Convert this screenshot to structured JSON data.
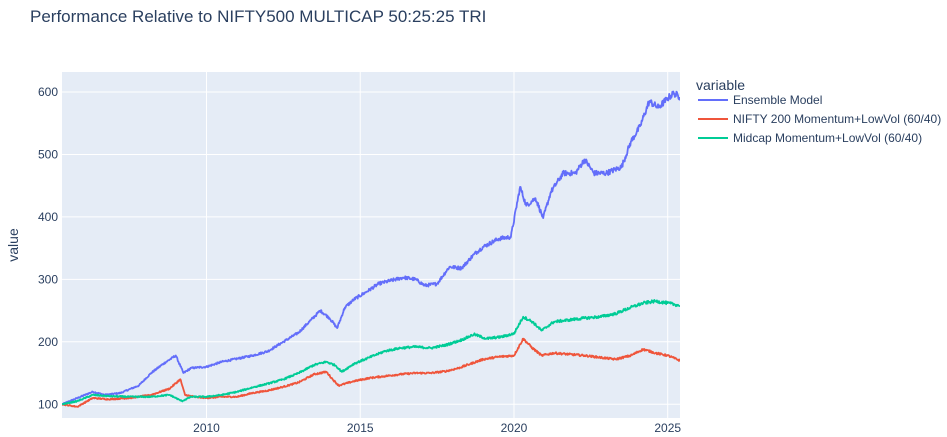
{
  "chart_data": {
    "type": "line",
    "title": "Performance Relative to NIFTY500 MULTICAP 50:25:25 TRI",
    "xlabel": "",
    "ylabel": "value",
    "xlim": [
      2005.3,
      2025.4
    ],
    "ylim": [
      78,
      632
    ],
    "x_ticks": [
      2010,
      2015,
      2020,
      2025
    ],
    "y_ticks": [
      100,
      200,
      300,
      400,
      500,
      600
    ],
    "grid": true,
    "legend": {
      "title": "variable",
      "placement": "right"
    },
    "series": [
      {
        "name": "Ensemble Model",
        "color": "#636efa",
        "points": [
          [
            2005.3,
            100
          ],
          [
            2005.8,
            110
          ],
          [
            2006.3,
            120
          ],
          [
            2006.7,
            115
          ],
          [
            2007.2,
            118
          ],
          [
            2007.8,
            130
          ],
          [
            2008.2,
            150
          ],
          [
            2008.6,
            165
          ],
          [
            2009.0,
            178
          ],
          [
            2009.25,
            150
          ],
          [
            2009.5,
            158
          ],
          [
            2010.0,
            160
          ],
          [
            2010.5,
            168
          ],
          [
            2011.0,
            173
          ],
          [
            2011.5,
            178
          ],
          [
            2012.0,
            185
          ],
          [
            2012.5,
            200
          ],
          [
            2013.0,
            215
          ],
          [
            2013.4,
            235
          ],
          [
            2013.7,
            250
          ],
          [
            2014.0,
            238
          ],
          [
            2014.25,
            222
          ],
          [
            2014.5,
            255
          ],
          [
            2014.8,
            268
          ],
          [
            2015.2,
            280
          ],
          [
            2015.6,
            293
          ],
          [
            2016.0,
            298
          ],
          [
            2016.4,
            303
          ],
          [
            2016.8,
            300
          ],
          [
            2017.1,
            290
          ],
          [
            2017.5,
            293
          ],
          [
            2017.9,
            320
          ],
          [
            2018.3,
            318
          ],
          [
            2018.7,
            340
          ],
          [
            2019.0,
            352
          ],
          [
            2019.5,
            365
          ],
          [
            2019.9,
            368
          ],
          [
            2020.2,
            448
          ],
          [
            2020.4,
            418
          ],
          [
            2020.7,
            430
          ],
          [
            2020.95,
            398
          ],
          [
            2021.2,
            440
          ],
          [
            2021.6,
            470
          ],
          [
            2022.0,
            470
          ],
          [
            2022.3,
            492
          ],
          [
            2022.6,
            470
          ],
          [
            2023.0,
            470
          ],
          [
            2023.5,
            480
          ],
          [
            2023.8,
            520
          ],
          [
            2024.1,
            545
          ],
          [
            2024.4,
            585
          ],
          [
            2024.7,
            575
          ],
          [
            2025.0,
            590
          ],
          [
            2025.2,
            598
          ],
          [
            2025.4,
            592
          ]
        ]
      },
      {
        "name": "NIFTY 200 Momentum+LowVol (60/40)",
        "color": "#ef553b",
        "points": [
          [
            2005.3,
            100
          ],
          [
            2005.8,
            96
          ],
          [
            2006.3,
            110
          ],
          [
            2006.8,
            108
          ],
          [
            2007.5,
            110
          ],
          [
            2008.2,
            115
          ],
          [
            2008.8,
            125
          ],
          [
            2009.15,
            140
          ],
          [
            2009.3,
            115
          ],
          [
            2009.6,
            112
          ],
          [
            2010.0,
            110
          ],
          [
            2010.5,
            112
          ],
          [
            2011.0,
            112
          ],
          [
            2011.5,
            118
          ],
          [
            2012.0,
            122
          ],
          [
            2012.5,
            128
          ],
          [
            2013.0,
            135
          ],
          [
            2013.5,
            148
          ],
          [
            2013.9,
            152
          ],
          [
            2014.1,
            140
          ],
          [
            2014.3,
            130
          ],
          [
            2014.8,
            137
          ],
          [
            2015.3,
            142
          ],
          [
            2015.8,
            145
          ],
          [
            2016.3,
            148
          ],
          [
            2016.8,
            150
          ],
          [
            2017.3,
            150
          ],
          [
            2017.8,
            153
          ],
          [
            2018.2,
            158
          ],
          [
            2018.6,
            165
          ],
          [
            2019.0,
            172
          ],
          [
            2019.5,
            176
          ],
          [
            2020.0,
            178
          ],
          [
            2020.3,
            205
          ],
          [
            2020.6,
            190
          ],
          [
            2020.9,
            178
          ],
          [
            2021.3,
            182
          ],
          [
            2021.8,
            180
          ],
          [
            2022.3,
            178
          ],
          [
            2022.8,
            175
          ],
          [
            2023.3,
            172
          ],
          [
            2023.8,
            178
          ],
          [
            2024.2,
            188
          ],
          [
            2024.6,
            182
          ],
          [
            2025.0,
            178
          ],
          [
            2025.4,
            170
          ]
        ]
      },
      {
        "name": "Midcap Momentum+LowVol (60/40)",
        "color": "#00cc96",
        "points": [
          [
            2005.3,
            100
          ],
          [
            2005.8,
            105
          ],
          [
            2006.3,
            115
          ],
          [
            2006.8,
            113
          ],
          [
            2007.5,
            112
          ],
          [
            2008.2,
            112
          ],
          [
            2008.8,
            115
          ],
          [
            2009.2,
            105
          ],
          [
            2009.5,
            112
          ],
          [
            2010.0,
            112
          ],
          [
            2010.5,
            115
          ],
          [
            2011.0,
            120
          ],
          [
            2011.5,
            127
          ],
          [
            2012.0,
            133
          ],
          [
            2012.5,
            140
          ],
          [
            2013.0,
            150
          ],
          [
            2013.5,
            163
          ],
          [
            2013.9,
            168
          ],
          [
            2014.2,
            162
          ],
          [
            2014.4,
            152
          ],
          [
            2014.8,
            165
          ],
          [
            2015.3,
            175
          ],
          [
            2015.8,
            185
          ],
          [
            2016.3,
            190
          ],
          [
            2016.8,
            192
          ],
          [
            2017.3,
            190
          ],
          [
            2017.8,
            195
          ],
          [
            2018.3,
            203
          ],
          [
            2018.7,
            212
          ],
          [
            2019.1,
            205
          ],
          [
            2019.6,
            208
          ],
          [
            2020.0,
            213
          ],
          [
            2020.3,
            240
          ],
          [
            2020.6,
            232
          ],
          [
            2020.9,
            218
          ],
          [
            2021.3,
            232
          ],
          [
            2021.8,
            235
          ],
          [
            2022.3,
            238
          ],
          [
            2022.8,
            240
          ],
          [
            2023.3,
            245
          ],
          [
            2023.8,
            255
          ],
          [
            2024.2,
            262
          ],
          [
            2024.6,
            265
          ],
          [
            2025.0,
            262
          ],
          [
            2025.4,
            258
          ]
        ]
      }
    ]
  }
}
